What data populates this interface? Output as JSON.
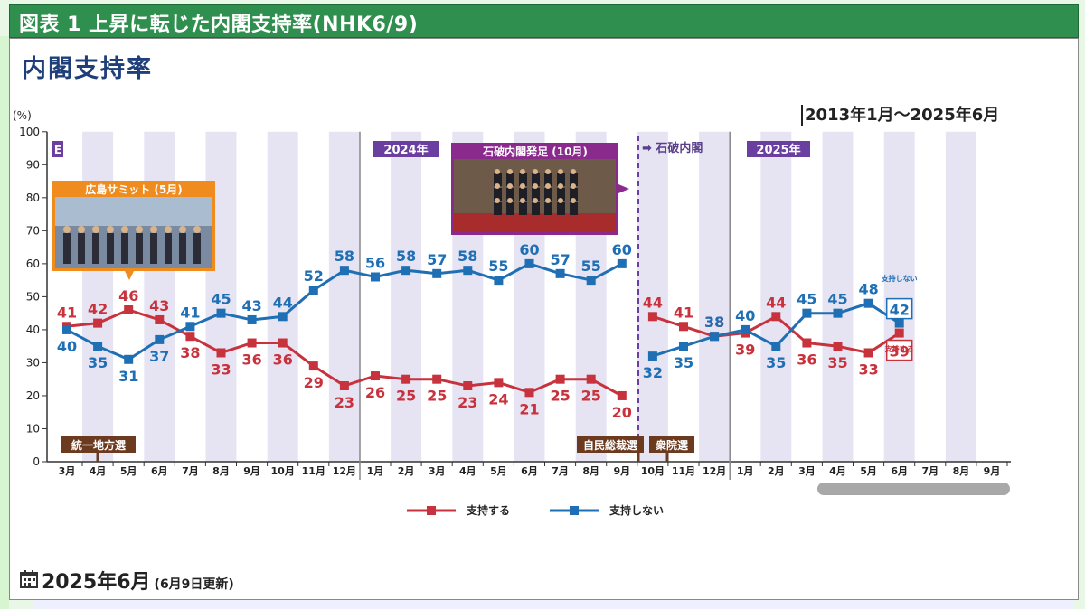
{
  "header": {
    "title": "図表 1 上昇に転じた内閣支持率(NHK6/9)"
  },
  "chart_title": "内閣支持率",
  "date_range": "2013年1月～2025年6月",
  "footer": {
    "date": "2025年6月",
    "note": "(6月9日更新)"
  },
  "chart_data": {
    "type": "line",
    "ylabel": "(%)",
    "ylim": [
      0,
      100
    ],
    "yticks": [
      0,
      10,
      20,
      30,
      40,
      50,
      60,
      70,
      80,
      90,
      100
    ],
    "x": [
      "3月",
      "4月",
      "5月",
      "6月",
      "7月",
      "8月",
      "9月",
      "10月",
      "11月",
      "12月",
      "1月",
      "2月",
      "3月",
      "4月",
      "5月",
      "6月",
      "7月",
      "8月",
      "9月",
      "10月",
      "11月",
      "12月",
      "1月",
      "2月",
      "3月",
      "4月",
      "5月",
      "6月",
      "7月",
      "8月",
      "9月"
    ],
    "series": [
      {
        "name": "支持する",
        "color": "#c8323c",
        "values": [
          41,
          42,
          46,
          43,
          38,
          33,
          36,
          36,
          29,
          23,
          26,
          25,
          25,
          23,
          24,
          21,
          25,
          25,
          20,
          44,
          41,
          38,
          39,
          44,
          36,
          35,
          33,
          39,
          null,
          null,
          null
        ]
      },
      {
        "name": "支持しない",
        "color": "#1f6fb5",
        "values": [
          40,
          35,
          31,
          37,
          41,
          45,
          43,
          44,
          52,
          58,
          56,
          58,
          57,
          58,
          55,
          60,
          57,
          55,
          60,
          32,
          35,
          38,
          40,
          35,
          45,
          45,
          48,
          42,
          null,
          null,
          null
        ]
      }
    ],
    "annotations": {
      "year_2024": "2024年",
      "year_2025": "2025年",
      "year_2023_partial": "E",
      "cabinet_change": "➡ 石破内閣",
      "photo_hiroshima": "広島サミット (5月)",
      "photo_ishiba": "石破内閣発足 (10月)",
      "event_local": "統一地方選",
      "event_ldp": "自民総裁選",
      "event_lower_house": "衆院選",
      "end_label_support": "支持する",
      "end_label_nonsupport": "支持しない"
    },
    "legend": [
      "支持する",
      "支持しない"
    ],
    "legend_position": "bottom",
    "grid": false
  },
  "colors": {
    "header_bg": "#2f8f4e",
    "support": "#c8323c",
    "nonsupport": "#1f6fb5",
    "title": "#1f3f7a",
    "stripe": "#e6e4f3",
    "year_tag": "#6b3fa0",
    "event_tag": "#6b3a1f"
  }
}
